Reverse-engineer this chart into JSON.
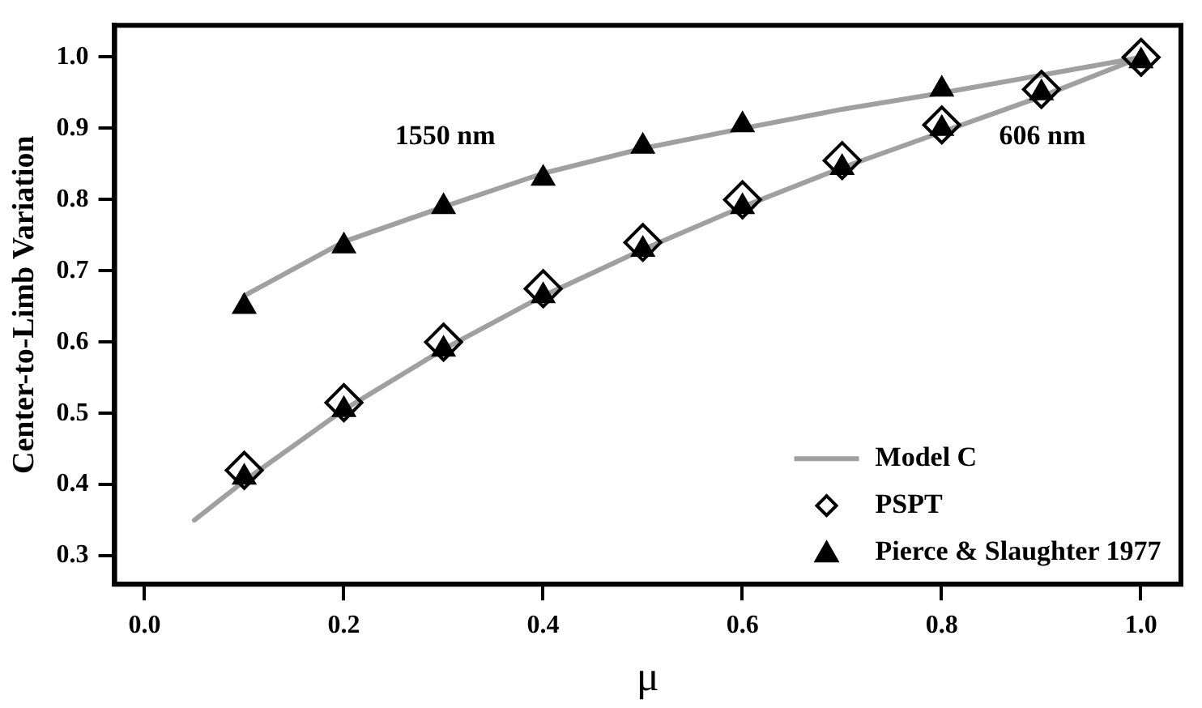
{
  "chart_data": {
    "type": "scatter",
    "xlabel": "μ",
    "ylabel": "Center-to-Limb Variation",
    "xlim": [
      -0.03,
      1.04
    ],
    "ylim": [
      0.26,
      1.045
    ],
    "xticks": [
      {
        "value": 0,
        "label": "0.0"
      },
      {
        "value": 0.2,
        "label": "0.2"
      },
      {
        "value": 0.4,
        "label": "0.4"
      },
      {
        "value": 0.6,
        "label": "0.6"
      },
      {
        "value": 0.8,
        "label": "0.8"
      },
      {
        "value": 1,
        "label": "1.0"
      }
    ],
    "yticks": [
      {
        "value": 0.3,
        "label": "0.3"
      },
      {
        "value": 0.4,
        "label": "0.4"
      },
      {
        "value": 0.5,
        "label": "0.5"
      },
      {
        "value": 0.6,
        "label": "0.6"
      },
      {
        "value": 0.7,
        "label": "0.7"
      },
      {
        "value": 0.8,
        "label": "0.8"
      },
      {
        "value": 0.9,
        "label": "0.9"
      },
      {
        "value": 1,
        "label": "1.0"
      }
    ],
    "grid": false,
    "legend": "bottom right",
    "series": [
      {
        "name": "Model C",
        "type": "line",
        "color": "#a0a0a0",
        "marker": "none",
        "x": [
          0.1,
          0.2,
          0.3,
          0.4,
          0.5,
          0.6,
          0.7,
          0.8,
          0.9,
          1.0
        ],
        "values": [
          0.665,
          0.741,
          0.79,
          0.837,
          0.872,
          0.9,
          0.927,
          0.95,
          0.975,
          1.0
        ]
      },
      {
        "type": "line",
        "color": "#a0a0a0",
        "marker": "none",
        "x": [
          0.05,
          0.1,
          0.2,
          0.3,
          0.4,
          0.5,
          0.6,
          0.7,
          0.8,
          0.9,
          1.0
        ],
        "values": [
          0.35,
          0.405,
          0.505,
          0.59,
          0.665,
          0.73,
          0.79,
          0.845,
          0.895,
          0.945,
          1.0
        ]
      },
      {
        "name": "PSPT",
        "type": "scatter",
        "color": "#000000",
        "marker": "diamond",
        "x": [
          0.1,
          0.2,
          0.3,
          0.4,
          0.5,
          0.6,
          0.7,
          0.8,
          0.9,
          1.0
        ],
        "values": [
          0.42,
          0.515,
          0.6,
          0.675,
          0.74,
          0.8,
          0.855,
          0.905,
          0.955,
          1.0
        ]
      },
      {
        "name": "Pierce & Slaughter 1977",
        "type": "scatter",
        "color": "#000000",
        "marker": "triangle",
        "x": [
          0.1,
          0.2,
          0.3,
          0.4,
          0.5,
          0.6,
          0.8,
          0.1,
          0.2,
          0.3,
          0.4,
          0.5,
          0.6,
          0.7,
          0.8,
          0.9,
          1.0
        ],
        "values": [
          0.65,
          0.735,
          0.79,
          0.83,
          0.875,
          0.905,
          0.955,
          0.41,
          0.505,
          0.59,
          0.665,
          0.73,
          0.79,
          0.845,
          0.9,
          0.95,
          0.995
        ]
      }
    ],
    "annotations": [
      "1550 nm",
      "606 nm"
    ]
  }
}
